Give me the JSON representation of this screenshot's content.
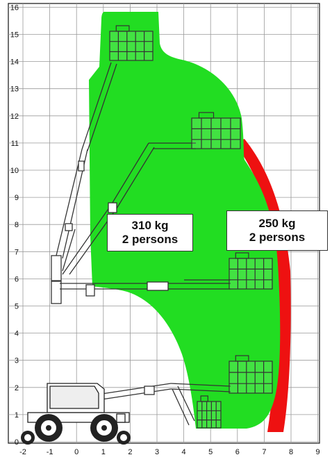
{
  "chart": {
    "x_ticks": [
      "-2",
      "-1",
      "0",
      "1",
      "2",
      "3",
      "4",
      "5",
      "6",
      "7",
      "8",
      "9"
    ],
    "y_ticks": [
      "0",
      "1",
      "2",
      "3",
      "4",
      "5",
      "6",
      "7",
      "8",
      "9",
      "10",
      "11",
      "12",
      "13",
      "14",
      "15",
      "16"
    ],
    "grid": true
  },
  "zones": [
    {
      "load": "310 kg",
      "persons": "2 persons",
      "color": "#22dd22"
    },
    {
      "load": "250 kg",
      "persons": "2 persons",
      "color": "#ee1111"
    }
  ]
}
